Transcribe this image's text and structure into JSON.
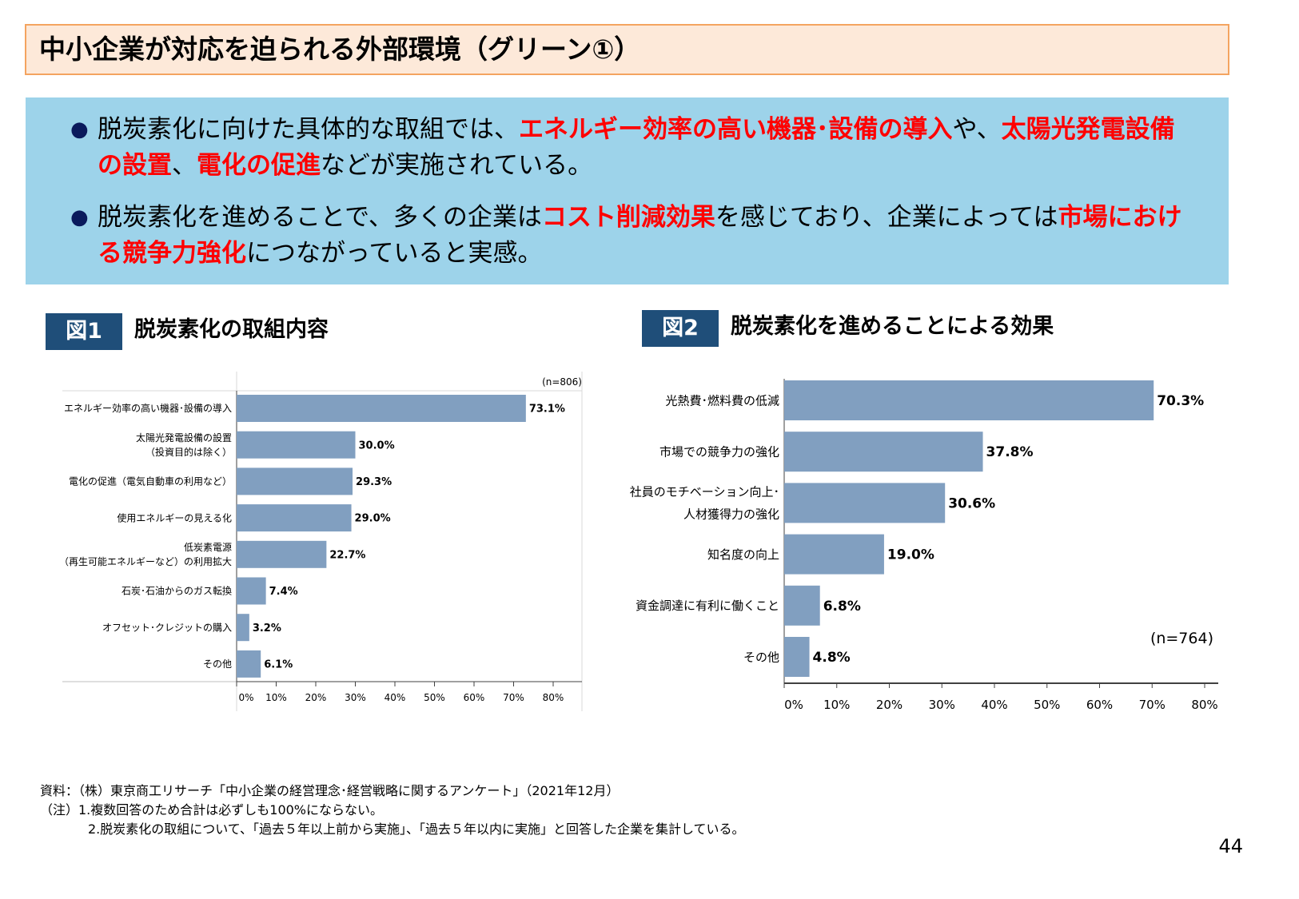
{
  "header": {
    "title": "中小企業が対応を迫られる外部環境（グリーン①）"
  },
  "summary": {
    "bullets": [
      {
        "segments": [
          {
            "t": "脱炭素化に向けた具体的な取組では、",
            "hl": false
          },
          {
            "t": "エネルギー効率の高い機器･設備の導入",
            "hl": true
          },
          {
            "t": "や、",
            "hl": false
          },
          {
            "t": "太陽光発電設備の設置",
            "hl": true
          },
          {
            "t": "、",
            "hl": false
          },
          {
            "t": "電化の促進",
            "hl": true
          },
          {
            "t": "などが実施されている。",
            "hl": false
          }
        ]
      },
      {
        "segments": [
          {
            "t": "脱炭素化を進めることで、多くの企業は",
            "hl": false
          },
          {
            "t": "コスト削減効果",
            "hl": true
          },
          {
            "t": "を感じており、企業によっては",
            "hl": false
          },
          {
            "t": "市場における競争力強化",
            "hl": true
          },
          {
            "t": "につながっていると実感。",
            "hl": false
          }
        ]
      }
    ],
    "bullet_symbol": "●",
    "highlight_color": "#ff0000"
  },
  "figures": [
    {
      "tag": "図1",
      "title": "脱炭素化の取組内容"
    },
    {
      "tag": "図2",
      "title": "脱炭素化を進めることによる効果"
    }
  ],
  "chart_data": [
    {
      "type": "bar",
      "orientation": "horizontal",
      "note": "(n=806)",
      "bar_color": "#819fc0",
      "categories": [
        "エネルギー効率の高い機器･設備の導入",
        "太陽光発電設備の設置\n（投資目的は除く）",
        "電化の促進（電気自動車の利用など）",
        "使用エネルギーの見える化",
        "低炭素電源\n（再生可能エネルギーなど）の利用拡大",
        "石炭･石油からのガス転換",
        "オフセット･クレジットの購入",
        "その他"
      ],
      "values": [
        73.1,
        30.0,
        29.3,
        29.0,
        22.7,
        7.4,
        3.2,
        6.1
      ],
      "data_labels": [
        "73.1%",
        "30.0%",
        "29.3%",
        "29.0%",
        "22.7%",
        "7.4%",
        "3.2%",
        "6.1%"
      ],
      "xlim": [
        0,
        80
      ],
      "xticks": [
        "0%",
        "10%",
        "20%",
        "30%",
        "40%",
        "50%",
        "60%",
        "70%",
        "80%"
      ]
    },
    {
      "type": "bar",
      "orientation": "horizontal",
      "note": "(n=764)",
      "bar_color": "#819fc0",
      "categories": [
        "光熱費･燃料費の低減",
        "市場での競争力の強化",
        "社員のモチベーション向上･\n人材獲得力の強化",
        "知名度の向上",
        "資金調達に有利に働くこと",
        "その他"
      ],
      "values": [
        70.3,
        37.8,
        30.6,
        19.0,
        6.8,
        4.8
      ],
      "data_labels": [
        "70.3%",
        "37.8%",
        "30.6%",
        "19.0%",
        "6.8%",
        "4.8%"
      ],
      "xlim": [
        0,
        80
      ],
      "xticks": [
        "0%",
        "10%",
        "20%",
        "30%",
        "40%",
        "50%",
        "60%",
        "70%",
        "80%"
      ]
    }
  ],
  "notes": {
    "source": "資料：（株）東京商工リサーチ「中小企業の経営理念･経営戦略に関するアンケート」（2021年12月）",
    "note1": "（注）1.複数回答のため合計は必ずしも100%にならない。",
    "note2": "2.脱炭素化の取組について、「過去５年以上前から実施」、「過去５年以内に実施」と回答した企業を集計している。"
  },
  "page_number": "44"
}
